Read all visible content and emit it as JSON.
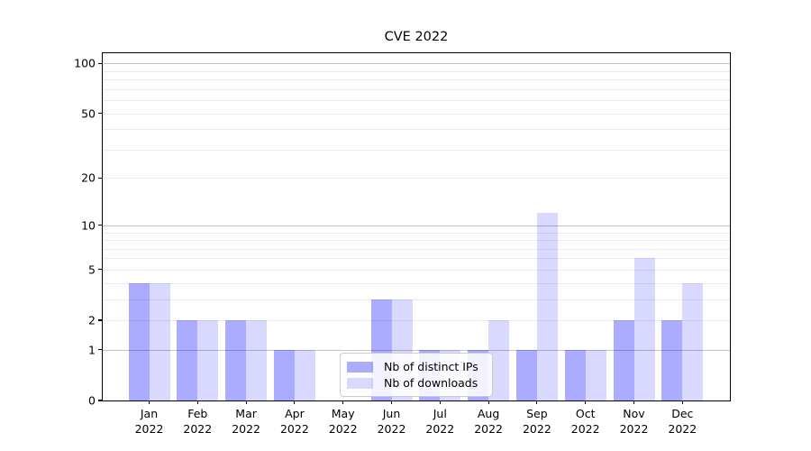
{
  "title": "CVE 2022",
  "chart_data": {
    "type": "bar",
    "title": "CVE 2022",
    "categories": [
      "Jan 2022",
      "Feb 2022",
      "Mar 2022",
      "Apr 2022",
      "May 2022",
      "Jun 2022",
      "Jul 2022",
      "Aug 2022",
      "Sep 2022",
      "Oct 2022",
      "Nov 2022",
      "Dec 2022"
    ],
    "months": [
      "Jan",
      "Feb",
      "Mar",
      "Apr",
      "May",
      "Jun",
      "Jul",
      "Aug",
      "Sep",
      "Oct",
      "Nov",
      "Dec"
    ],
    "x_tick_year": "2022",
    "series": [
      {
        "name": "Nb of distinct IPs",
        "color": "rgba(0,0,255,0.33)",
        "values": [
          4,
          2,
          2,
          1,
          0,
          3,
          1,
          1,
          1,
          1,
          2,
          2
        ]
      },
      {
        "name": "Nb of downloads",
        "color": "rgba(0,0,255,0.15)",
        "values": [
          4,
          2,
          2,
          1,
          0,
          3,
          1,
          2,
          12,
          1,
          6,
          4
        ]
      }
    ],
    "xlabel": "",
    "ylabel": "",
    "yscale": "log1p",
    "ylim": [
      0,
      115
    ],
    "y_ticks": [
      0,
      1,
      2,
      5,
      10,
      20,
      50,
      100
    ],
    "y_major_gridlines": [
      1,
      10,
      100
    ],
    "y_minor_gridlines": [
      2,
      3,
      4,
      5,
      6,
      7,
      8,
      9,
      20,
      30,
      40,
      50,
      60,
      70,
      80,
      90
    ],
    "grid": "on",
    "legend_position": "lower center",
    "colors": {
      "bar_distinct_ips": "rgba(0,0,255,0.33)",
      "bar_downloads": "rgba(0,0,255,0.15)",
      "grid_major": "#c3c3c3",
      "grid_minor": "#ebebeb",
      "axis": "#000000",
      "legend_border": "#cccccc"
    }
  }
}
